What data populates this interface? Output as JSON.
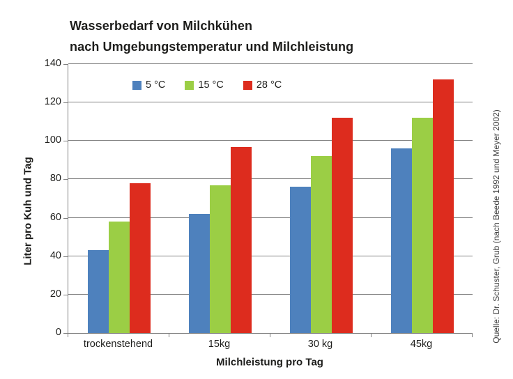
{
  "title": {
    "line1": "Wasserbedarf von Milchkühen",
    "line2": "nach Umgebungstemperatur und Milchleistung"
  },
  "source": "Quelle: Dr. Schuster, Grub (nach Beede 1992 und Meyer 2002)",
  "chart_data": {
    "type": "bar",
    "title": "Wasserbedarf von Milchkühen nach Umgebungstemperatur und Milchleistung",
    "categories": [
      "trockenstehend",
      "15kg",
      "30 kg",
      "45kg"
    ],
    "series": [
      {
        "name": "5 °C",
        "color": "#4e81bd",
        "values": [
          43,
          62,
          76,
          96
        ]
      },
      {
        "name": "15 °C",
        "color": "#9bce45",
        "values": [
          58,
          77,
          92,
          112
        ]
      },
      {
        "name": "28 °C",
        "color": "#dd2c1e",
        "values": [
          78,
          97,
          112,
          132
        ]
      }
    ],
    "xlabel": "Milchleistung pro Tag",
    "ylabel": "Liter pro Kuh und Tag",
    "ylim": [
      0,
      140
    ],
    "ytick_step": 20,
    "grid": true,
    "legend_position": "top-left-inside"
  },
  "colors": {
    "grid": "#7f7f7f",
    "axis": "#7f7f7f",
    "text": "#1d1d1b",
    "background": "#ffffff"
  }
}
